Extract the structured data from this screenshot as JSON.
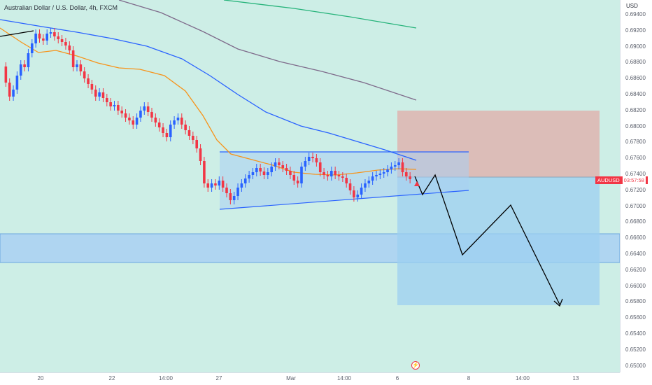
{
  "title": "Australian Dollar / U.S. Dollar, 4h, FXCM",
  "price_axis": {
    "currency": "USD",
    "ticks": [
      "0.69400",
      "0.69200",
      "0.69000",
      "0.68800",
      "0.68600",
      "0.68400",
      "0.68200",
      "0.68000",
      "0.67800",
      "0.67600",
      "0.67400",
      "0.67200",
      "0.67000",
      "0.66800",
      "0.66600",
      "0.66400",
      "0.66200",
      "0.66000",
      "0.65800",
      "0.65600",
      "0.65400",
      "0.65200",
      "0.65000"
    ]
  },
  "time_axis": {
    "ticks": [
      "20",
      "22",
      "14:00",
      "27",
      "Mar",
      "14:00",
      "6",
      "8",
      "14:00",
      "13"
    ]
  },
  "price_tag": {
    "symbol": "AUDUSD",
    "countdown": "03:57:58"
  },
  "icons": {
    "flash": "lightning-bolt-icon"
  },
  "colors": {
    "bull_candle": "#2962ff",
    "bear_candle": "#f23645",
    "ema_fast": "#f7931a",
    "ema_mid": "#2962ff",
    "ema_slow": "#7e6a8a",
    "ema_long": "#26b37a",
    "background": "#cdeee6"
  }
}
